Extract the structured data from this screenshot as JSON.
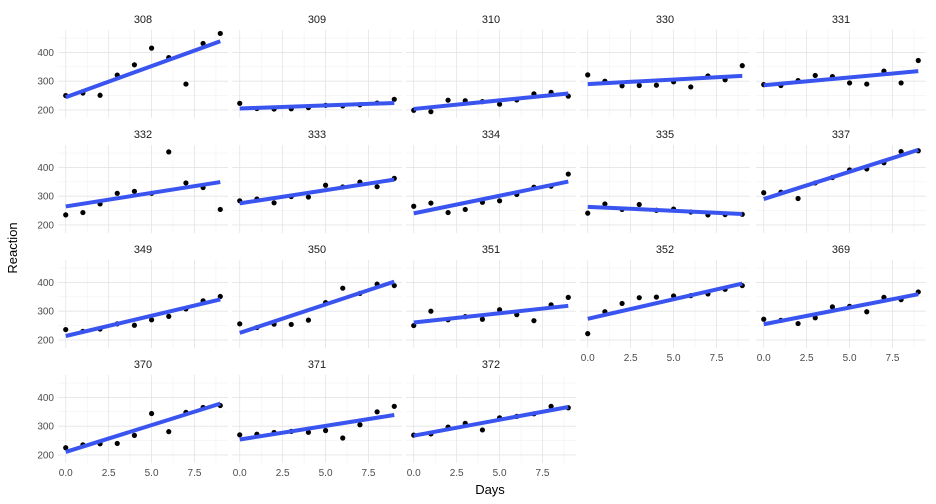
{
  "chart_data": {
    "type": "scatter",
    "xlabel": "Days",
    "ylabel": "Reaction",
    "xlim": [
      -0.45,
      9.45
    ],
    "ylim": [
      172,
      478
    ],
    "x_ticks": [
      0,
      2.5,
      5,
      7.5
    ],
    "x_tick_labels": [
      "0.0",
      "2.5",
      "5.0",
      "7.5"
    ],
    "y_ticks": [
      200,
      300,
      400
    ],
    "grid": true,
    "point_color": "#000000",
    "fit_color": "#3a54f0",
    "panel_rows": [
      [
        "308",
        "309",
        "310",
        "330",
        "331"
      ],
      [
        "332",
        "333",
        "334",
        "335",
        "337"
      ],
      [
        "349",
        "350",
        "351",
        "352",
        "369"
      ],
      [
        "370",
        "371",
        "372"
      ]
    ],
    "panels": [
      {
        "label": "308",
        "x": [
          0,
          1,
          2,
          3,
          4,
          5,
          6,
          7,
          8,
          9
        ],
        "y": [
          250,
          259,
          251,
          321,
          357,
          415,
          382,
          290,
          431,
          466
        ],
        "fit": [
          244.2,
          438.9
        ]
      },
      {
        "label": "309",
        "x": [
          0,
          1,
          2,
          3,
          4,
          5,
          6,
          7,
          8,
          9
        ],
        "y": [
          223,
          205,
          203,
          204,
          208,
          216,
          214,
          218,
          224,
          237
        ],
        "fit": [
          205.1,
          224.2
        ]
      },
      {
        "label": "310",
        "x": [
          0,
          1,
          2,
          3,
          4,
          5,
          6,
          7,
          8,
          9
        ],
        "y": [
          199,
          194,
          234,
          232,
          229,
          220,
          235,
          256,
          261,
          248
        ],
        "fit": [
          203.5,
          257.1
        ]
      },
      {
        "label": "330",
        "x": [
          0,
          1,
          2,
          3,
          4,
          5,
          6,
          7,
          8,
          9
        ],
        "y": [
          322,
          300,
          284,
          285,
          286,
          298,
          280,
          318,
          305,
          354
        ],
        "fit": [
          289.7,
          318.6
        ]
      },
      {
        "label": "331",
        "x": [
          0,
          1,
          2,
          3,
          4,
          5,
          6,
          7,
          8,
          9
        ],
        "y": [
          288,
          285,
          302,
          320,
          316,
          294,
          290,
          335,
          294,
          372
        ],
        "fit": [
          285.7,
          334.9
        ]
      },
      {
        "label": "332",
        "x": [
          0,
          1,
          2,
          3,
          4,
          5,
          6,
          7,
          8,
          9
        ],
        "y": [
          235,
          243,
          273,
          310,
          317,
          310,
          454,
          346,
          330,
          254
        ],
        "fit": [
          264.3,
          349.2
        ]
      },
      {
        "label": "333",
        "x": [
          0,
          1,
          2,
          3,
          4,
          5,
          6,
          7,
          8,
          9
        ],
        "y": [
          284,
          290,
          277,
          299,
          297,
          338,
          332,
          349,
          333,
          362
        ],
        "fit": [
          275.0,
          357.7
        ]
      },
      {
        "label": "334",
        "x": [
          0,
          1,
          2,
          3,
          4,
          5,
          6,
          7,
          8,
          9
        ],
        "y": [
          265,
          276,
          243,
          254,
          279,
          284,
          306,
          331,
          335,
          377
        ],
        "fit": [
          240.2,
          350.8
        ]
      },
      {
        "label": "335",
        "x": [
          0,
          1,
          2,
          3,
          4,
          5,
          6,
          7,
          8,
          9
        ],
        "y": [
          241,
          273,
          254,
          271,
          251,
          255,
          245,
          235,
          236,
          237
        ],
        "fit": [
          263.0,
          238.2
        ]
      },
      {
        "label": "337",
        "x": [
          0,
          1,
          2,
          3,
          4,
          5,
          6,
          7,
          8,
          9
        ],
        "y": [
          312,
          314,
          292,
          346,
          365,
          391,
          395,
          416,
          455,
          458
        ],
        "fit": [
          290.1,
          461.1
        ]
      },
      {
        "label": "349",
        "x": [
          0,
          1,
          2,
          3,
          4,
          5,
          6,
          7,
          8,
          9
        ],
        "y": [
          236,
          230,
          238,
          256,
          251,
          270,
          282,
          308,
          336,
          351
        ],
        "fit": [
          213.7,
          340.8
        ]
      },
      {
        "label": "350",
        "x": [
          0,
          1,
          2,
          3,
          4,
          5,
          6,
          7,
          8,
          9
        ],
        "y": [
          256,
          243,
          255,
          254,
          269,
          330,
          380,
          362,
          394,
          389
        ],
        "fit": [
          224.5,
          402.8
        ]
      },
      {
        "label": "351",
        "x": [
          0,
          1,
          2,
          3,
          4,
          5,
          6,
          7,
          8,
          9
        ],
        "y": [
          250,
          300,
          270,
          281,
          272,
          305,
          288,
          267,
          322,
          348
        ],
        "fit": [
          260.6,
          318.7
        ]
      },
      {
        "label": "352",
        "x": [
          0,
          1,
          2,
          3,
          4,
          5,
          6,
          7,
          8,
          9
        ],
        "y": [
          222,
          298,
          327,
          347,
          349,
          353,
          354,
          360,
          376,
          389
        ],
        "fit": [
          273.5,
          396.2
        ]
      },
      {
        "label": "369",
        "x": [
          0,
          1,
          2,
          3,
          4,
          5,
          6,
          7,
          8,
          9
        ],
        "y": [
          272,
          268,
          257,
          277,
          315,
          317,
          298,
          348,
          340,
          367
        ],
        "fit": [
          254.6,
          359.2
        ]
      },
      {
        "label": "370",
        "x": [
          0,
          1,
          2,
          3,
          4,
          5,
          6,
          7,
          8,
          9
        ],
        "y": [
          225,
          235,
          239,
          240,
          268,
          344,
          281,
          348,
          365,
          372
        ],
        "fit": [
          210.4,
          378.5
        ]
      },
      {
        "label": "371",
        "x": [
          0,
          1,
          2,
          3,
          4,
          5,
          6,
          7,
          8,
          9
        ],
        "y": [
          270,
          272,
          278,
          282,
          279,
          285,
          259,
          305,
          350,
          369
        ],
        "fit": [
          253.6,
          338.9
        ]
      },
      {
        "label": "372",
        "x": [
          0,
          1,
          2,
          3,
          4,
          5,
          6,
          7,
          8,
          9
        ],
        "y": [
          269,
          273,
          297,
          310,
          287,
          329,
          334,
          343,
          369,
          364
        ],
        "fit": [
          267.0,
          366.8
        ]
      }
    ]
  }
}
